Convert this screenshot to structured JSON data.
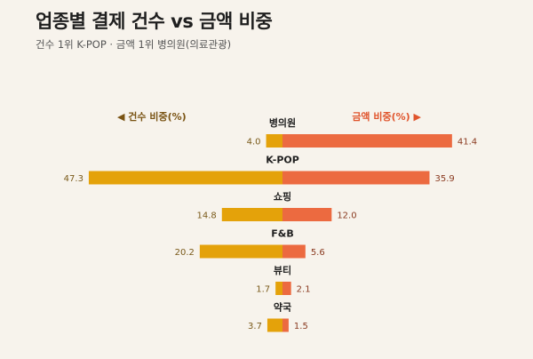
{
  "title": "업종별 결제 건수 vs 금액 비중",
  "subtitle": "건수 1위 K-POP · 금액 1위 병의원(의료관광)",
  "colors": {
    "count": "#e4a20a",
    "amount": "#ec6a40",
    "count_text": "#7a5414",
    "amount_text": "#e0552d"
  },
  "chart_data": {
    "type": "bar",
    "orientation": "diverging-horizontal",
    "legend_left": "◀ 건수 비중(%)",
    "legend_right": "금액 비중(%) ▶",
    "categories": [
      "병의원",
      "K-POP",
      "쇼핑",
      "F&B",
      "뷰티",
      "약국"
    ],
    "series": [
      {
        "name": "건수 비중(%)",
        "values": [
          4.0,
          47.3,
          14.8,
          20.2,
          1.7,
          3.7
        ]
      },
      {
        "name": "금액 비중(%)",
        "values": [
          41.4,
          35.9,
          12.0,
          5.6,
          2.1,
          1.5
        ]
      }
    ]
  }
}
